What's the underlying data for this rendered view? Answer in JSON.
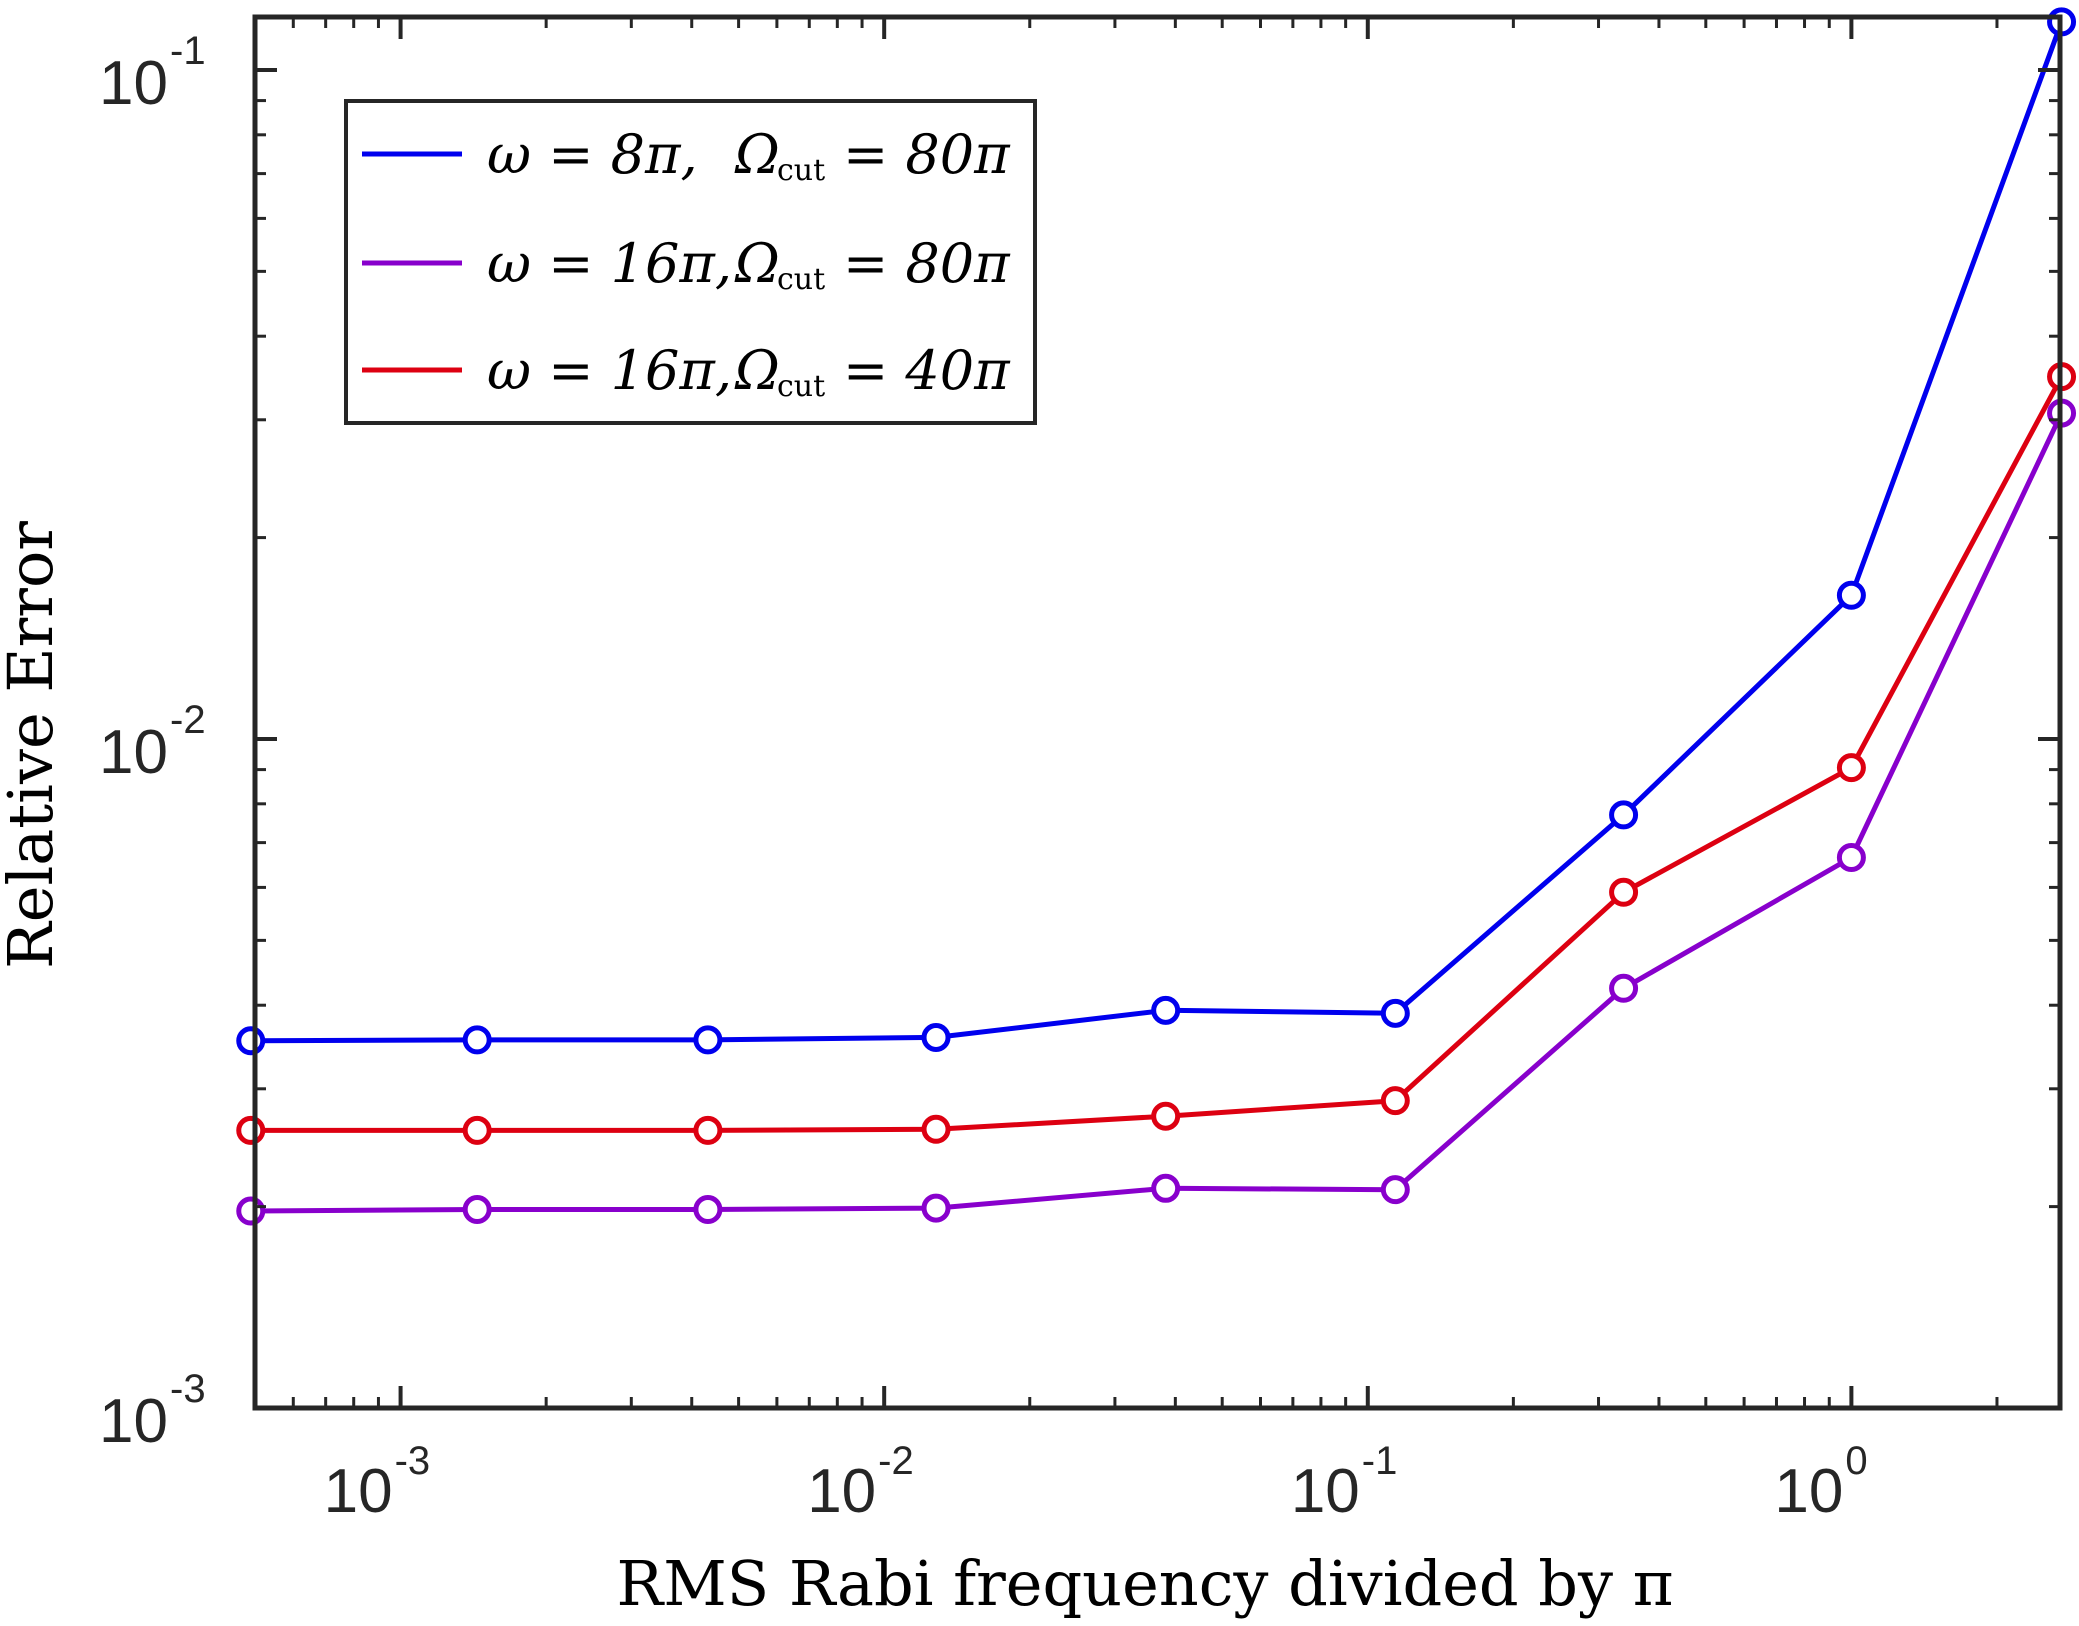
{
  "chart_data": {
    "type": "line",
    "title": "",
    "xlabel": "RMS Rabi frequency divided by π",
    "ylabel": "Relative Error",
    "xscale": "log",
    "yscale": "log",
    "xlim": [
      0.0005,
      2.7
    ],
    "ylim": [
      0.001,
      0.12
    ],
    "x_ticks": [
      {
        "value": 0.001,
        "base": "10",
        "exp": "-3"
      },
      {
        "value": 0.01,
        "base": "10",
        "exp": "-2"
      },
      {
        "value": 0.1,
        "base": "10",
        "exp": "-1"
      },
      {
        "value": 1,
        "base": "10",
        "exp": "0"
      }
    ],
    "y_ticks": [
      {
        "value": 0.001,
        "base": "10",
        "exp": "-3"
      },
      {
        "value": 0.01,
        "base": "10",
        "exp": "-2"
      },
      {
        "value": 0.1,
        "base": "10",
        "exp": "-1"
      }
    ],
    "x": [
      0.00049,
      0.00144,
      0.00432,
      0.0128,
      0.0382,
      0.114,
      0.338,
      1.0,
      2.72
    ],
    "legend_position": "top-left",
    "series": [
      {
        "name": "ω = 8π,   Ωcut = 80π",
        "omega": "ω = 8π,",
        "omega_cut": "Ω",
        "cut_sub": "cut",
        "cut_value": "= 80π",
        "color": "#0000ee",
        "values": [
          0.00354,
          0.00355,
          0.00355,
          0.00358,
          0.00393,
          0.00389,
          0.0077,
          0.0164,
          0.118
        ]
      },
      {
        "name": "ω = 16π, Ωcut = 80π",
        "omega": "ω = 16π,",
        "omega_cut": "Ω",
        "cut_sub": "cut",
        "cut_value": "= 80π",
        "color": "#8800cc",
        "values": [
          0.00197,
          0.00198,
          0.00198,
          0.00199,
          0.00213,
          0.00212,
          0.00424,
          0.00665,
          0.0307
        ]
      },
      {
        "name": "ω = 16π, Ωcut = 40π",
        "omega": "ω = 16π,",
        "omega_cut": "Ω",
        "cut_sub": "cut",
        "cut_value": "= 40π",
        "color": "#dd0011",
        "values": [
          0.0026,
          0.0026,
          0.0026,
          0.00261,
          0.00273,
          0.00288,
          0.0059,
          0.00906,
          0.0348
        ]
      }
    ]
  }
}
